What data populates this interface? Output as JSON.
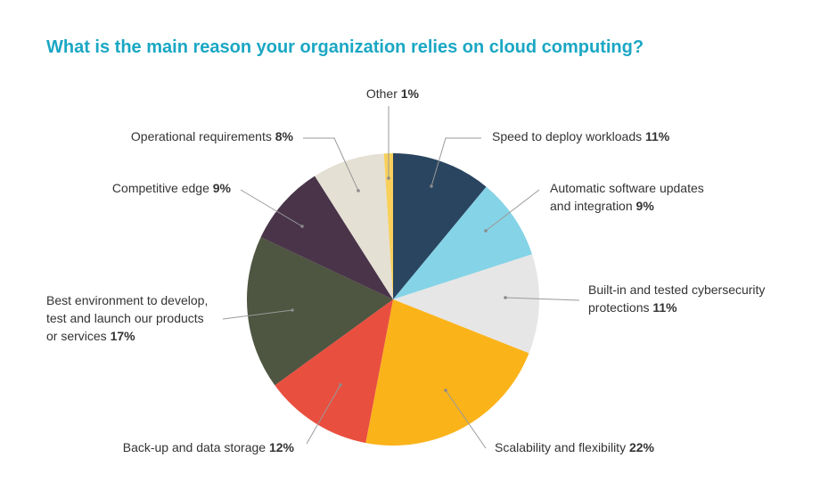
{
  "title": "What is the main reason your organization relies on cloud computing?",
  "chart_data": {
    "type": "pie",
    "title": "What is the main reason your organization relies on cloud computing?",
    "slices": [
      {
        "label": "Speed to deploy workloads",
        "value": 11,
        "value_label": "11%",
        "color": "#2a4560"
      },
      {
        "label": "Automatic software updates and integration",
        "value": 9,
        "value_label": "9%",
        "color": "#85d3e6"
      },
      {
        "label": "Built-in and tested cybersecurity protections",
        "value": 11,
        "value_label": "11%",
        "color": "#e6e6e6"
      },
      {
        "label": "Scalability and flexibility",
        "value": 22,
        "value_label": "22%",
        "color": "#fbb31a"
      },
      {
        "label": "Back-up and data storage",
        "value": 12,
        "value_label": "12%",
        "color": "#e94f3f"
      },
      {
        "label": "Best environment to develop, test and launch our products or services",
        "value": 17,
        "value_label": "17%",
        "color": "#4e5540"
      },
      {
        "label": "Competitive edge",
        "value": 9,
        "value_label": "9%",
        "color": "#49344a"
      },
      {
        "label": "Operational requirements",
        "value": 8,
        "value_label": "8%",
        "color": "#e5e0d4"
      },
      {
        "label": "Other",
        "value": 1,
        "value_label": "1%",
        "color": "#f8d05a"
      }
    ],
    "label_lines": [
      [
        "Speed to deploy workloads"
      ],
      [
        "Automatic software updates",
        "and integration"
      ],
      [
        "Built-in and tested cybersecurity",
        "protections "
      ],
      [
        "Scalability and flexibility"
      ],
      [
        "Back-up and data storage"
      ],
      [
        "Best environment to develop,",
        "test and launch our products",
        "or services"
      ],
      [
        "Competitive edge"
      ],
      [
        "Operational requirements"
      ],
      [
        "Other"
      ]
    ]
  }
}
